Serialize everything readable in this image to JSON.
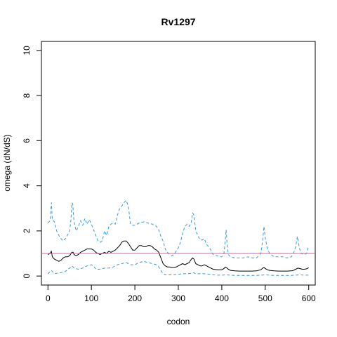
{
  "chart_data": {
    "type": "line",
    "title": "Rv1297",
    "xlabel": "codon",
    "ylabel": "omega (dN/dS)",
    "xlim": [
      -15,
      615
    ],
    "ylim": [
      -0.4,
      10.4
    ],
    "x_ticks": [
      0,
      100,
      200,
      300,
      400,
      500,
      600
    ],
    "y_ticks": [
      0,
      2,
      4,
      6,
      8,
      10
    ],
    "grid": false,
    "reference_line": {
      "y": 1,
      "color": "#CC66AA"
    },
    "series": [
      {
        "role": "upper",
        "color": "#3399DD",
        "dash": "dashed",
        "points": [
          [
            0,
            2.35
          ],
          [
            5,
            2.45
          ],
          [
            8,
            3.25
          ],
          [
            10,
            2.5
          ],
          [
            15,
            2.4
          ],
          [
            20,
            2.0
          ],
          [
            28,
            1.7
          ],
          [
            35,
            1.55
          ],
          [
            42,
            1.7
          ],
          [
            50,
            2.0
          ],
          [
            53,
            2.5
          ],
          [
            55,
            3.25
          ],
          [
            57,
            3.2
          ],
          [
            60,
            2.4
          ],
          [
            65,
            2.0
          ],
          [
            70,
            2.2
          ],
          [
            75,
            2.45
          ],
          [
            80,
            2.25
          ],
          [
            85,
            2.55
          ],
          [
            90,
            2.3
          ],
          [
            95,
            2.5
          ],
          [
            100,
            2.3
          ],
          [
            105,
            2.05
          ],
          [
            110,
            1.8
          ],
          [
            115,
            1.55
          ],
          [
            120,
            1.5
          ],
          [
            125,
            1.55
          ],
          [
            130,
            2.0
          ],
          [
            135,
            1.8
          ],
          [
            140,
            2.2
          ],
          [
            145,
            2.3
          ],
          [
            150,
            2.35
          ],
          [
            155,
            2.3
          ],
          [
            160,
            2.7
          ],
          [
            165,
            3.0
          ],
          [
            170,
            3.1
          ],
          [
            175,
            3.25
          ],
          [
            180,
            3.35
          ],
          [
            185,
            3.1
          ],
          [
            190,
            2.3
          ],
          [
            195,
            2.25
          ],
          [
            200,
            2.25
          ],
          [
            210,
            2.35
          ],
          [
            220,
            2.4
          ],
          [
            230,
            2.35
          ],
          [
            240,
            2.3
          ],
          [
            250,
            2.2
          ],
          [
            255,
            2.05
          ],
          [
            260,
            1.75
          ],
          [
            265,
            1.55
          ],
          [
            270,
            1.2
          ],
          [
            275,
            1.05
          ],
          [
            280,
            0.95
          ],
          [
            285,
            0.9
          ],
          [
            290,
            0.95
          ],
          [
            295,
            1.1
          ],
          [
            300,
            1.25
          ],
          [
            305,
            1.5
          ],
          [
            310,
            1.9
          ],
          [
            315,
            2.2
          ],
          [
            320,
            2.3
          ],
          [
            325,
            2.2
          ],
          [
            330,
            2.4
          ],
          [
            333,
            2.8
          ],
          [
            336,
            2.7
          ],
          [
            340,
            2.0
          ],
          [
            345,
            1.8
          ],
          [
            350,
            1.6
          ],
          [
            355,
            1.6
          ],
          [
            360,
            1.65
          ],
          [
            365,
            1.4
          ],
          [
            370,
            1.3
          ],
          [
            375,
            1.15
          ],
          [
            380,
            0.95
          ],
          [
            385,
            0.9
          ],
          [
            390,
            0.9
          ],
          [
            395,
            0.85
          ],
          [
            400,
            0.85
          ],
          [
            405,
            1.0
          ],
          [
            408,
            1.6
          ],
          [
            410,
            2.05
          ],
          [
            412,
            1.5
          ],
          [
            415,
            0.95
          ],
          [
            420,
            0.85
          ],
          [
            430,
            0.8
          ],
          [
            440,
            0.8
          ],
          [
            450,
            0.8
          ],
          [
            460,
            0.85
          ],
          [
            470,
            0.8
          ],
          [
            480,
            0.8
          ],
          [
            490,
            1.0
          ],
          [
            494,
            1.6
          ],
          [
            497,
            2.2
          ],
          [
            500,
            1.7
          ],
          [
            505,
            1.2
          ],
          [
            510,
            1.0
          ],
          [
            520,
            0.85
          ],
          [
            530,
            0.85
          ],
          [
            540,
            0.85
          ],
          [
            550,
            0.8
          ],
          [
            560,
            0.85
          ],
          [
            565,
            1.0
          ],
          [
            570,
            1.3
          ],
          [
            574,
            1.75
          ],
          [
            578,
            1.3
          ],
          [
            582,
            1.0
          ],
          [
            590,
            0.95
          ],
          [
            595,
            1.0
          ],
          [
            600,
            1.35
          ]
        ]
      },
      {
        "role": "estimate",
        "color": "#000000",
        "dash": "solid",
        "points": [
          [
            0,
            0.95
          ],
          [
            5,
            1.0
          ],
          [
            8,
            1.1
          ],
          [
            10,
            0.85
          ],
          [
            15,
            0.75
          ],
          [
            20,
            0.7
          ],
          [
            25,
            0.65
          ],
          [
            30,
            0.7
          ],
          [
            35,
            0.8
          ],
          [
            40,
            0.85
          ],
          [
            45,
            0.85
          ],
          [
            50,
            0.9
          ],
          [
            55,
            1.05
          ],
          [
            58,
            1.05
          ],
          [
            60,
            0.95
          ],
          [
            65,
            0.9
          ],
          [
            70,
            0.95
          ],
          [
            75,
            1.05
          ],
          [
            80,
            1.1
          ],
          [
            85,
            1.15
          ],
          [
            90,
            1.2
          ],
          [
            95,
            1.2
          ],
          [
            100,
            1.2
          ],
          [
            105,
            1.15
          ],
          [
            110,
            1.05
          ],
          [
            115,
            1.0
          ],
          [
            120,
            0.95
          ],
          [
            125,
            1.0
          ],
          [
            130,
            1.05
          ],
          [
            135,
            1.0
          ],
          [
            140,
            1.1
          ],
          [
            145,
            1.05
          ],
          [
            150,
            1.1
          ],
          [
            155,
            1.15
          ],
          [
            160,
            1.25
          ],
          [
            165,
            1.35
          ],
          [
            170,
            1.5
          ],
          [
            175,
            1.55
          ],
          [
            180,
            1.55
          ],
          [
            185,
            1.45
          ],
          [
            190,
            1.3
          ],
          [
            195,
            1.15
          ],
          [
            200,
            1.15
          ],
          [
            205,
            1.25
          ],
          [
            210,
            1.35
          ],
          [
            215,
            1.35
          ],
          [
            220,
            1.3
          ],
          [
            225,
            1.3
          ],
          [
            230,
            1.35
          ],
          [
            235,
            1.35
          ],
          [
            240,
            1.3
          ],
          [
            245,
            1.2
          ],
          [
            250,
            1.15
          ],
          [
            255,
            1.05
          ],
          [
            260,
            0.8
          ],
          [
            265,
            0.55
          ],
          [
            270,
            0.45
          ],
          [
            275,
            0.4
          ],
          [
            280,
            0.4
          ],
          [
            285,
            0.38
          ],
          [
            290,
            0.38
          ],
          [
            295,
            0.4
          ],
          [
            300,
            0.45
          ],
          [
            305,
            0.5
          ],
          [
            310,
            0.55
          ],
          [
            315,
            0.5
          ],
          [
            320,
            0.55
          ],
          [
            325,
            0.6
          ],
          [
            330,
            0.75
          ],
          [
            333,
            0.8
          ],
          [
            336,
            0.75
          ],
          [
            340,
            0.55
          ],
          [
            345,
            0.5
          ],
          [
            350,
            0.45
          ],
          [
            355,
            0.45
          ],
          [
            360,
            0.5
          ],
          [
            365,
            0.45
          ],
          [
            370,
            0.4
          ],
          [
            375,
            0.35
          ],
          [
            380,
            0.3
          ],
          [
            390,
            0.28
          ],
          [
            400,
            0.28
          ],
          [
            405,
            0.33
          ],
          [
            408,
            0.4
          ],
          [
            410,
            0.38
          ],
          [
            415,
            0.3
          ],
          [
            420,
            0.25
          ],
          [
            430,
            0.23
          ],
          [
            440,
            0.22
          ],
          [
            450,
            0.22
          ],
          [
            460,
            0.22
          ],
          [
            470,
            0.22
          ],
          [
            480,
            0.23
          ],
          [
            490,
            0.28
          ],
          [
            494,
            0.35
          ],
          [
            497,
            0.38
          ],
          [
            500,
            0.33
          ],
          [
            505,
            0.28
          ],
          [
            510,
            0.25
          ],
          [
            520,
            0.23
          ],
          [
            530,
            0.22
          ],
          [
            540,
            0.22
          ],
          [
            550,
            0.22
          ],
          [
            560,
            0.23
          ],
          [
            565,
            0.25
          ],
          [
            570,
            0.3
          ],
          [
            575,
            0.35
          ],
          [
            580,
            0.33
          ],
          [
            585,
            0.3
          ],
          [
            590,
            0.3
          ],
          [
            595,
            0.32
          ],
          [
            600,
            0.37
          ]
        ]
      },
      {
        "role": "lower",
        "color": "#3399DD",
        "dash": "dashed",
        "points": [
          [
            0,
            0.1
          ],
          [
            5,
            0.2
          ],
          [
            8,
            0.25
          ],
          [
            10,
            0.2
          ],
          [
            15,
            0.1
          ],
          [
            20,
            0.12
          ],
          [
            30,
            0.15
          ],
          [
            40,
            0.2
          ],
          [
            50,
            0.35
          ],
          [
            55,
            0.45
          ],
          [
            58,
            0.4
          ],
          [
            60,
            0.35
          ],
          [
            70,
            0.3
          ],
          [
            80,
            0.35
          ],
          [
            90,
            0.45
          ],
          [
            100,
            0.5
          ],
          [
            105,
            0.45
          ],
          [
            110,
            0.3
          ],
          [
            120,
            0.3
          ],
          [
            130,
            0.35
          ],
          [
            140,
            0.35
          ],
          [
            150,
            0.4
          ],
          [
            160,
            0.5
          ],
          [
            170,
            0.55
          ],
          [
            180,
            0.6
          ],
          [
            185,
            0.55
          ],
          [
            190,
            0.5
          ],
          [
            200,
            0.5
          ],
          [
            210,
            0.6
          ],
          [
            220,
            0.65
          ],
          [
            230,
            0.6
          ],
          [
            240,
            0.55
          ],
          [
            250,
            0.5
          ],
          [
            255,
            0.4
          ],
          [
            260,
            0.25
          ],
          [
            265,
            0.1
          ],
          [
            270,
            0.05
          ],
          [
            280,
            0.05
          ],
          [
            290,
            0.05
          ],
          [
            300,
            0.08
          ],
          [
            310,
            0.1
          ],
          [
            320,
            0.1
          ],
          [
            330,
            0.12
          ],
          [
            335,
            0.15
          ],
          [
            340,
            0.1
          ],
          [
            350,
            0.1
          ],
          [
            360,
            0.1
          ],
          [
            370,
            0.08
          ],
          [
            380,
            0.05
          ],
          [
            390,
            0.04
          ],
          [
            400,
            0.04
          ],
          [
            410,
            0.05
          ],
          [
            420,
            0.04
          ],
          [
            430,
            0.03
          ],
          [
            440,
            0.03
          ],
          [
            450,
            0.03
          ],
          [
            460,
            0.03
          ],
          [
            470,
            0.03
          ],
          [
            480,
            0.03
          ],
          [
            490,
            0.04
          ],
          [
            500,
            0.05
          ],
          [
            510,
            0.04
          ],
          [
            520,
            0.03
          ],
          [
            530,
            0.03
          ],
          [
            540,
            0.03
          ],
          [
            550,
            0.03
          ],
          [
            560,
            0.03
          ],
          [
            570,
            0.04
          ],
          [
            580,
            0.05
          ],
          [
            590,
            0.04
          ],
          [
            600,
            0.04
          ]
        ]
      }
    ]
  }
}
